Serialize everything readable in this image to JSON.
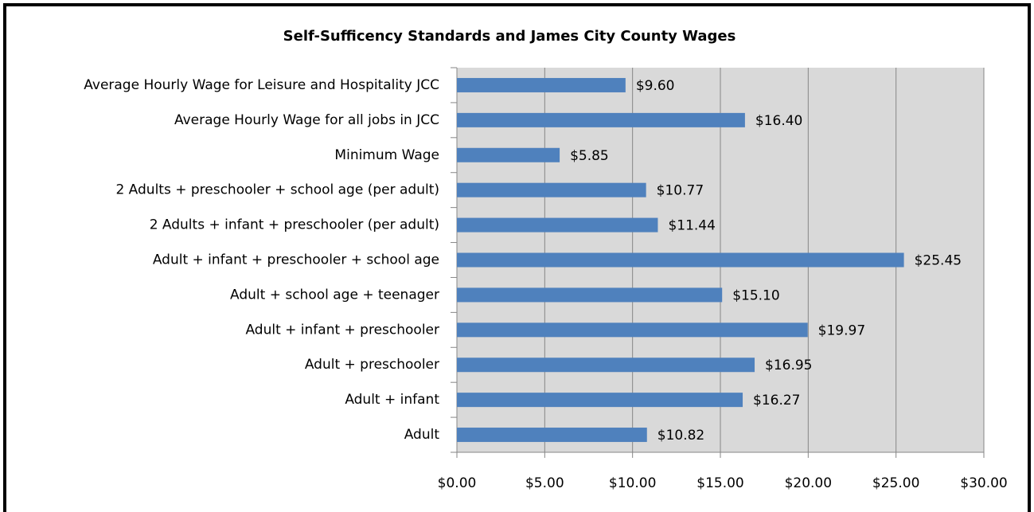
{
  "chart_data": {
    "type": "bar",
    "orientation": "horizontal",
    "title": "Self-Sufficency Standards and James City County Wages",
    "categories": [
      "Average Hourly Wage for Leisure and Hospitality JCC",
      "Average Hourly Wage for all jobs in JCC",
      "Minimum Wage",
      "2 Adults + preschooler + school age (per adult)",
      "2 Adults + infant + preschooler (per adult)",
      "Adult + infant + preschooler + school age",
      "Adult + school age + teenager",
      "Adult + infant + preschooler",
      "Adult + preschooler",
      "Adult + infant",
      "Adult"
    ],
    "values": [
      9.6,
      16.4,
      5.85,
      10.77,
      11.44,
      25.45,
      15.1,
      19.97,
      16.95,
      16.27,
      10.82
    ],
    "value_labels": [
      "$9.60",
      "$16.40",
      "$5.85",
      "$10.77",
      "$11.44",
      "$25.45",
      "$15.10",
      "$19.97",
      "$16.95",
      "$16.27",
      "$10.82"
    ],
    "color": "#4f81bd",
    "xlim": [
      0,
      30
    ],
    "xticks": [
      {
        "value": 0,
        "label": "$0.00"
      },
      {
        "value": 5,
        "label": "$5.00"
      },
      {
        "value": 10,
        "label": "$10.00"
      },
      {
        "value": 15,
        "label": "$15.00"
      },
      {
        "value": 20,
        "label": "$20.00"
      },
      {
        "value": 25,
        "label": "$25.00"
      },
      {
        "value": 30,
        "label": "$30.00"
      }
    ],
    "grid": true
  }
}
